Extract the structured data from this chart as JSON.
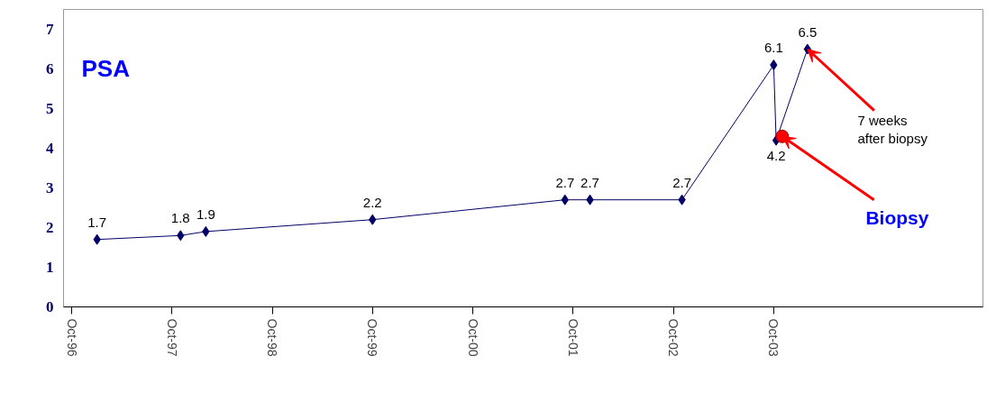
{
  "chart_data": {
    "type": "line",
    "title": "PSA",
    "xlim": [
      "1996-09",
      "2005-11"
    ],
    "ylim": [
      0,
      7.5
    ],
    "yticks": [
      0,
      1,
      2,
      3,
      4,
      5,
      6,
      7
    ],
    "xticks": [
      {
        "value": "1996-10",
        "label": "Oct-96"
      },
      {
        "value": "1997-10",
        "label": "Oct-97"
      },
      {
        "value": "1998-10",
        "label": "Oct-98"
      },
      {
        "value": "1999-10",
        "label": "Oct-99"
      },
      {
        "value": "2000-10",
        "label": "Oct-00"
      },
      {
        "value": "2001-10",
        "label": "Oct-01"
      },
      {
        "value": "2002-10",
        "label": "Oct-02"
      },
      {
        "value": "2003-10",
        "label": "Oct-03"
      }
    ],
    "series": [
      {
        "color": "#000066",
        "marker": "diamond",
        "x": [
          "1997-01",
          "1997-11",
          "1998-02",
          "1999-10",
          "2001-09",
          "2001-12",
          "2002-11",
          "2003-10-01",
          "2003-10-10",
          "2004-02"
        ],
        "values": [
          1.7,
          1.8,
          1.9,
          2.2,
          2.7,
          2.7,
          2.7,
          6.1,
          4.2,
          6.5
        ],
        "value_labels": [
          "1.7",
          "1.8",
          "1.9",
          "2.2",
          "2.7",
          "2.7",
          "2.7",
          "6.1",
          "4.2",
          "6.5"
        ]
      },
      {
        "type": "scatter",
        "color": "#ff0000",
        "marker": "circle",
        "x": [
          "2003-11"
        ],
        "values": [
          4.3
        ]
      }
    ],
    "annotations": [
      {
        "text": "Biopsy",
        "x": "2003-11",
        "y": 4.3
      },
      {
        "text": "7 weeks after biopsy",
        "x": "2004-02",
        "y": 6.5
      }
    ],
    "grid": false
  }
}
